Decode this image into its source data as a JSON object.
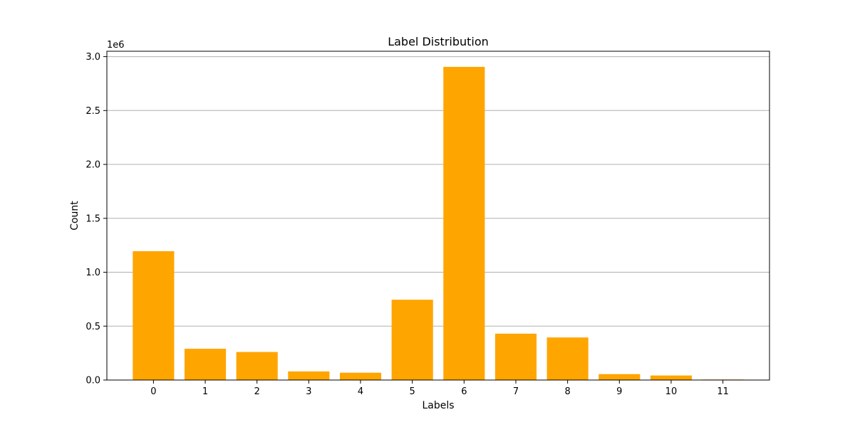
{
  "chart_data": {
    "type": "bar",
    "title": "Label Distribution",
    "xlabel": "Labels",
    "ylabel": "Count",
    "categories": [
      "0",
      "1",
      "2",
      "3",
      "4",
      "5",
      "6",
      "7",
      "8",
      "9",
      "10",
      "11"
    ],
    "values": [
      1195000,
      290000,
      260000,
      80000,
      68000,
      745000,
      2905000,
      430000,
      395000,
      55000,
      42000,
      5000
    ],
    "ylim": [
      0,
      3050000
    ],
    "yticks": [
      0,
      500000,
      1000000,
      1500000,
      2000000,
      2500000,
      3000000
    ],
    "ytick_labels": [
      "0.0",
      "0.5",
      "1.0",
      "1.5",
      "2.0",
      "2.5",
      "3.0"
    ],
    "y_offset_label": "1e6",
    "grid": "y",
    "bar_color": "#FFA500"
  }
}
